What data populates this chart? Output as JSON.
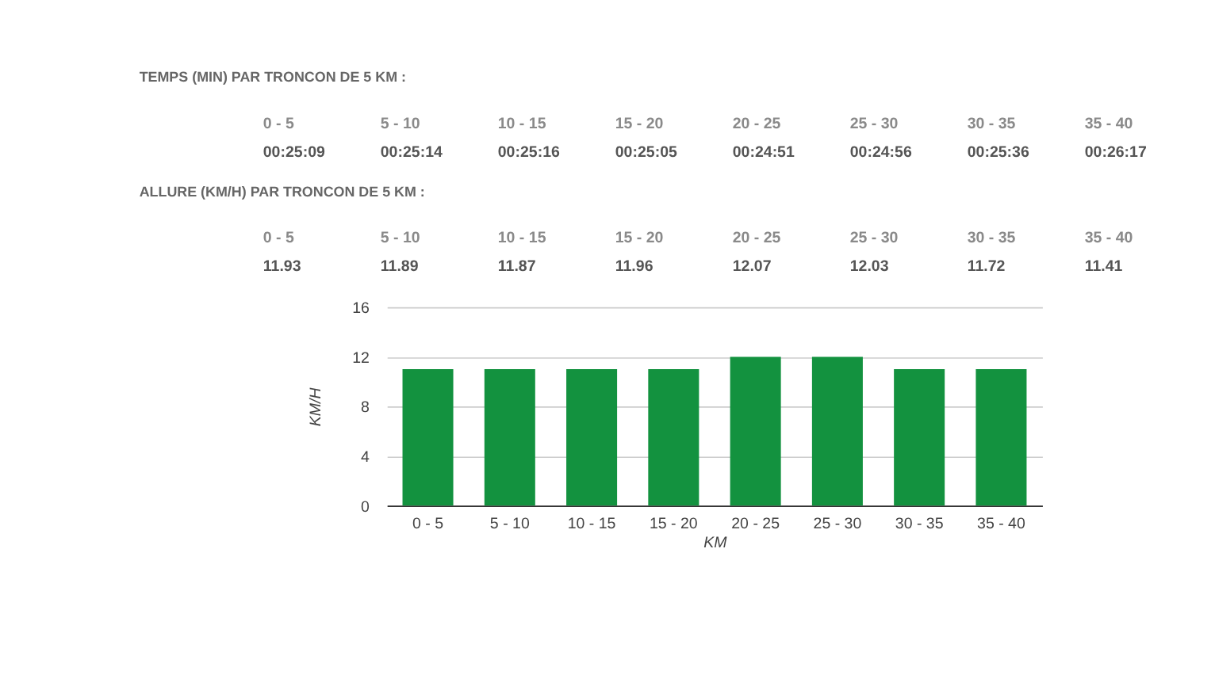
{
  "chart_data": [
    {
      "type": "other",
      "title": "TEMPS (MIN) PAR TRONCON DE 5 KM :",
      "categories": [
        "0 - 5",
        "5 - 10",
        "10 - 15",
        "15 - 20",
        "20 - 25",
        "25 - 30",
        "30 - 35",
        "35 - 40"
      ],
      "annotations": [
        "00:25:09",
        "00:25:14",
        "00:25:16",
        "00:25:05",
        "00:24:51",
        "00:24:56",
        "00:25:36",
        "00:26:17"
      ]
    },
    {
      "type": "other",
      "title": "ALLURE (KM/H) PAR TRONCON DE 5 KM :",
      "categories": [
        "0 - 5",
        "5 - 10",
        "10 - 15",
        "15 - 20",
        "20 - 25",
        "25 - 30",
        "30 - 35",
        "35 - 40"
      ],
      "values": [
        11.93,
        11.89,
        11.87,
        11.96,
        12.07,
        12.03,
        11.72,
        11.41
      ],
      "data_labels": true
    },
    {
      "type": "bar",
      "categories": [
        "0 - 5",
        "5 - 10",
        "10 - 15",
        "15 - 20",
        "20 - 25",
        "25 - 30",
        "30 - 35",
        "35 - 40"
      ],
      "values": [
        11,
        11,
        11,
        11,
        12,
        12,
        11,
        11
      ],
      "color": "#13923f",
      "xlabel": "KM",
      "ylabel": "KM/H",
      "ylim": [
        0,
        16
      ],
      "yticks": [
        0,
        4,
        8,
        12,
        16
      ],
      "grid": "y"
    }
  ]
}
